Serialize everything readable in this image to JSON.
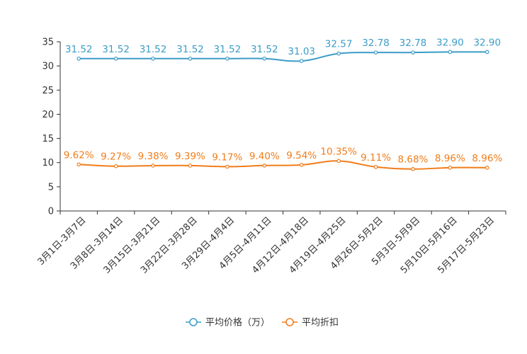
{
  "chart_data": {
    "type": "line",
    "title": "",
    "xlabel": "",
    "ylabel": "",
    "ylim": [
      0,
      35
    ],
    "yticks": [
      0,
      5,
      10,
      15,
      20,
      25,
      30,
      35
    ],
    "categories": [
      "3月1日-3月7日",
      "3月8日-3月14日",
      "3月15日-3月21日",
      "3月22日-3月28日",
      "3月29日-4月4日",
      "4月5日-4月11日",
      "4月12日-4月18日",
      "4月19日-4月25日",
      "4月26日-5月2日",
      "5月3日-5月9日",
      "5月10日-5月16日",
      "5月17日-5月23日"
    ],
    "legend_position": "bottom-center",
    "series": [
      {
        "name": "平均价格（万）",
        "color": "#3c9cc8",
        "values": [
          31.52,
          31.52,
          31.52,
          31.52,
          31.52,
          31.52,
          31.03,
          32.57,
          32.78,
          32.78,
          32.9,
          32.9
        ],
        "labels": [
          "31.52",
          "31.52",
          "31.52",
          "31.52",
          "31.52",
          "31.52",
          "31.03",
          "32.57",
          "32.78",
          "32.78",
          "32.90",
          "32.90"
        ]
      },
      {
        "name": "平均折扣",
        "color": "#f07d1a",
        "values": [
          9.62,
          9.27,
          9.38,
          9.39,
          9.17,
          9.4,
          9.54,
          10.35,
          9.11,
          8.68,
          8.96,
          8.96
        ],
        "labels": [
          "9.62%",
          "9.27%",
          "9.38%",
          "9.39%",
          "9.17%",
          "9.40%",
          "9.54%",
          "10.35%",
          "9.11%",
          "8.68%",
          "8.96%",
          "8.96%"
        ]
      }
    ]
  }
}
